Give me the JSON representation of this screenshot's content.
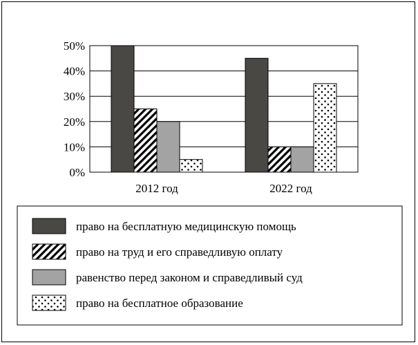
{
  "chart_data": {
    "type": "bar",
    "categories": [
      "2012 год",
      "2022 год"
    ],
    "series": [
      {
        "name": "право на бесплатную медицинскую помощь",
        "values": [
          50,
          45
        ],
        "pattern": "solid",
        "color": "#4a4845"
      },
      {
        "name": "право на труд и его справедливую оплату",
        "values": [
          25,
          10
        ],
        "pattern": "diagonal-hatch",
        "color": "#000000"
      },
      {
        "name": "равенство перед законом и справедливый суд",
        "values": [
          20,
          10
        ],
        "pattern": "solid",
        "color": "#a3a3a3"
      },
      {
        "name": "право на бесплатное образование",
        "values": [
          5,
          35
        ],
        "pattern": "dots",
        "color": "#000000"
      }
    ],
    "yticks": [
      "0%",
      "10%",
      "20%",
      "30%",
      "40%",
      "50%"
    ],
    "ylim": [
      0,
      50
    ],
    "grid": true,
    "legend_position": "bottom",
    "title": "",
    "xlabel": "",
    "ylabel": ""
  }
}
